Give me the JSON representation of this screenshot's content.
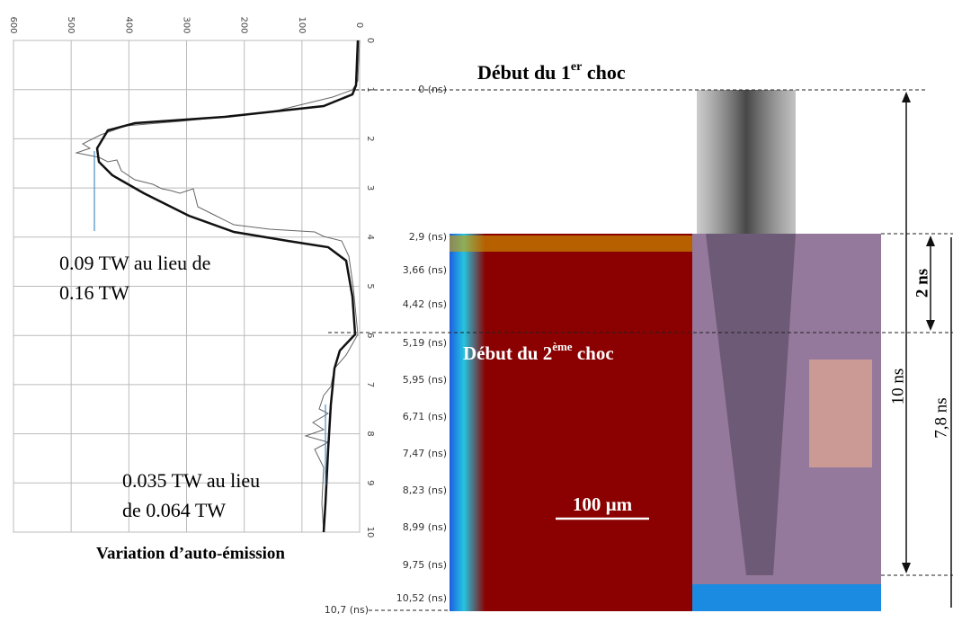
{
  "plot": {
    "x_ticks": [
      "600",
      "500",
      "400",
      "300",
      "200",
      "100",
      "0"
    ],
    "y_ticks": [
      "0",
      "1",
      "2",
      "3",
      "4",
      "5",
      "6",
      "7",
      "8",
      "9",
      "10"
    ],
    "annotation_1": [
      "0.09 TW au lieu de",
      "0.16 TW"
    ],
    "annotation_2": [
      "0.035 TW au lieu",
      "de 0.064 TW"
    ],
    "caption": "Variation d’auto-émission"
  },
  "streak": {
    "first_shock": {
      "main": "Début du 1",
      "sup": "er",
      "end": " choc"
    },
    "second_shock": {
      "main": "Début du 2",
      "sup": "ème",
      "end": " choc"
    },
    "time_labels": [
      "0 (ns)",
      "2,9 (ns)",
      "3,66 (ns)",
      "4,42 (ns)",
      "5,19 (ns)",
      "5,95 (ns)",
      "6,71 (ns)",
      "7,47 (ns)",
      "8,23 (ns)",
      "8,99 (ns)",
      "9,75 (ns)",
      "10,52 (ns)",
      "10,7 (ns)"
    ],
    "scale_bar": "100 µm",
    "durations": [
      "2 ns",
      "10 ns",
      "7,8 ns"
    ]
  }
}
